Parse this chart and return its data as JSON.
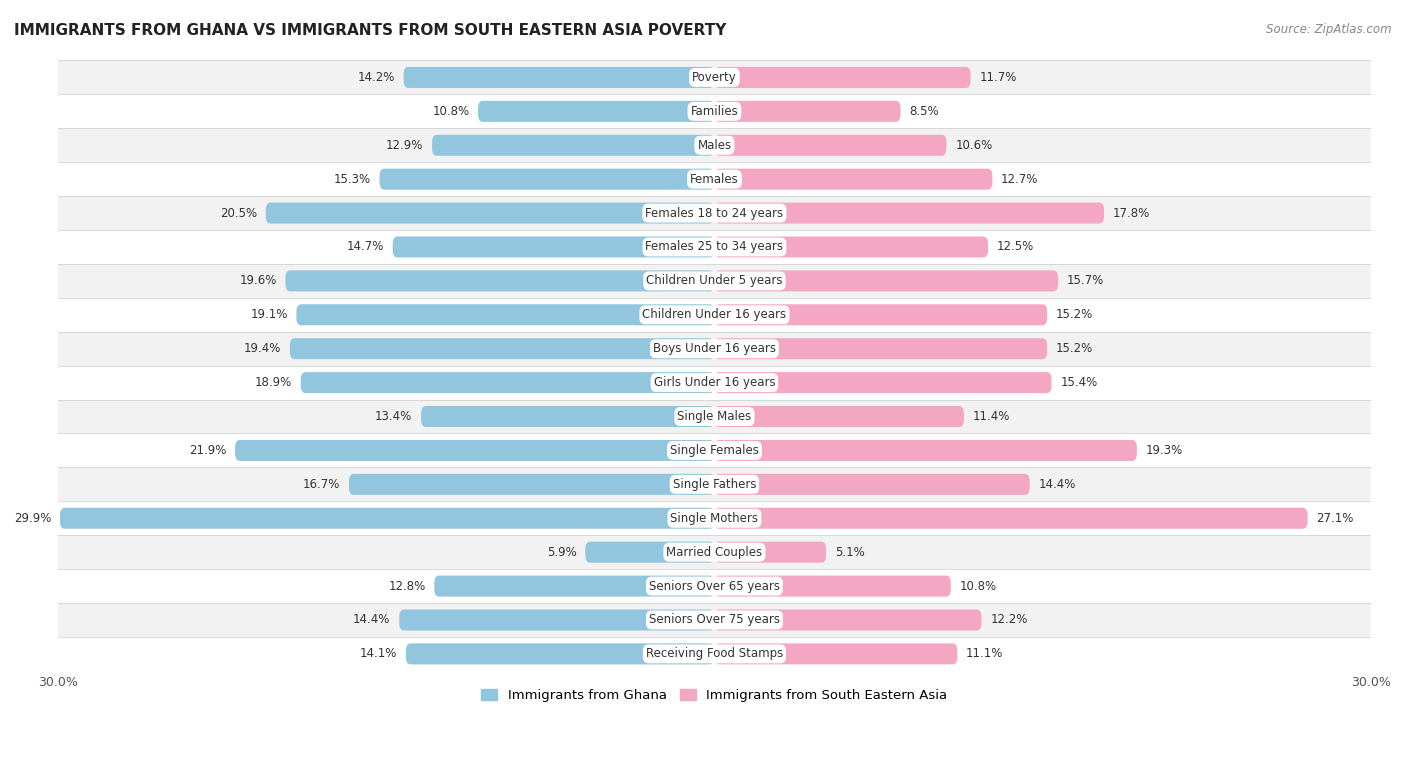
{
  "title": "IMMIGRANTS FROM GHANA VS IMMIGRANTS FROM SOUTH EASTERN ASIA POVERTY",
  "source": "Source: ZipAtlas.com",
  "categories": [
    "Poverty",
    "Families",
    "Males",
    "Females",
    "Females 18 to 24 years",
    "Females 25 to 34 years",
    "Children Under 5 years",
    "Children Under 16 years",
    "Boys Under 16 years",
    "Girls Under 16 years",
    "Single Males",
    "Single Females",
    "Single Fathers",
    "Single Mothers",
    "Married Couples",
    "Seniors Over 65 years",
    "Seniors Over 75 years",
    "Receiving Food Stamps"
  ],
  "ghana_values": [
    14.2,
    10.8,
    12.9,
    15.3,
    20.5,
    14.7,
    19.6,
    19.1,
    19.4,
    18.9,
    13.4,
    21.9,
    16.7,
    29.9,
    5.9,
    12.8,
    14.4,
    14.1
  ],
  "sea_values": [
    11.7,
    8.5,
    10.6,
    12.7,
    17.8,
    12.5,
    15.7,
    15.2,
    15.2,
    15.4,
    11.4,
    19.3,
    14.4,
    27.1,
    5.1,
    10.8,
    12.2,
    11.1
  ],
  "ghana_color": "#92c5de",
  "sea_color": "#f4a7c3",
  "background_color": "#ffffff",
  "row_odd_color": "#f2f2f2",
  "row_even_color": "#ffffff",
  "separator_color": "#cccccc",
  "xlim": 30.0,
  "bar_height": 0.62,
  "legend_ghana": "Immigrants from Ghana",
  "legend_sea": "Immigrants from South Eastern Asia",
  "value_label_fontsize": 8.5,
  "category_fontsize": 8.5,
  "title_fontsize": 11
}
